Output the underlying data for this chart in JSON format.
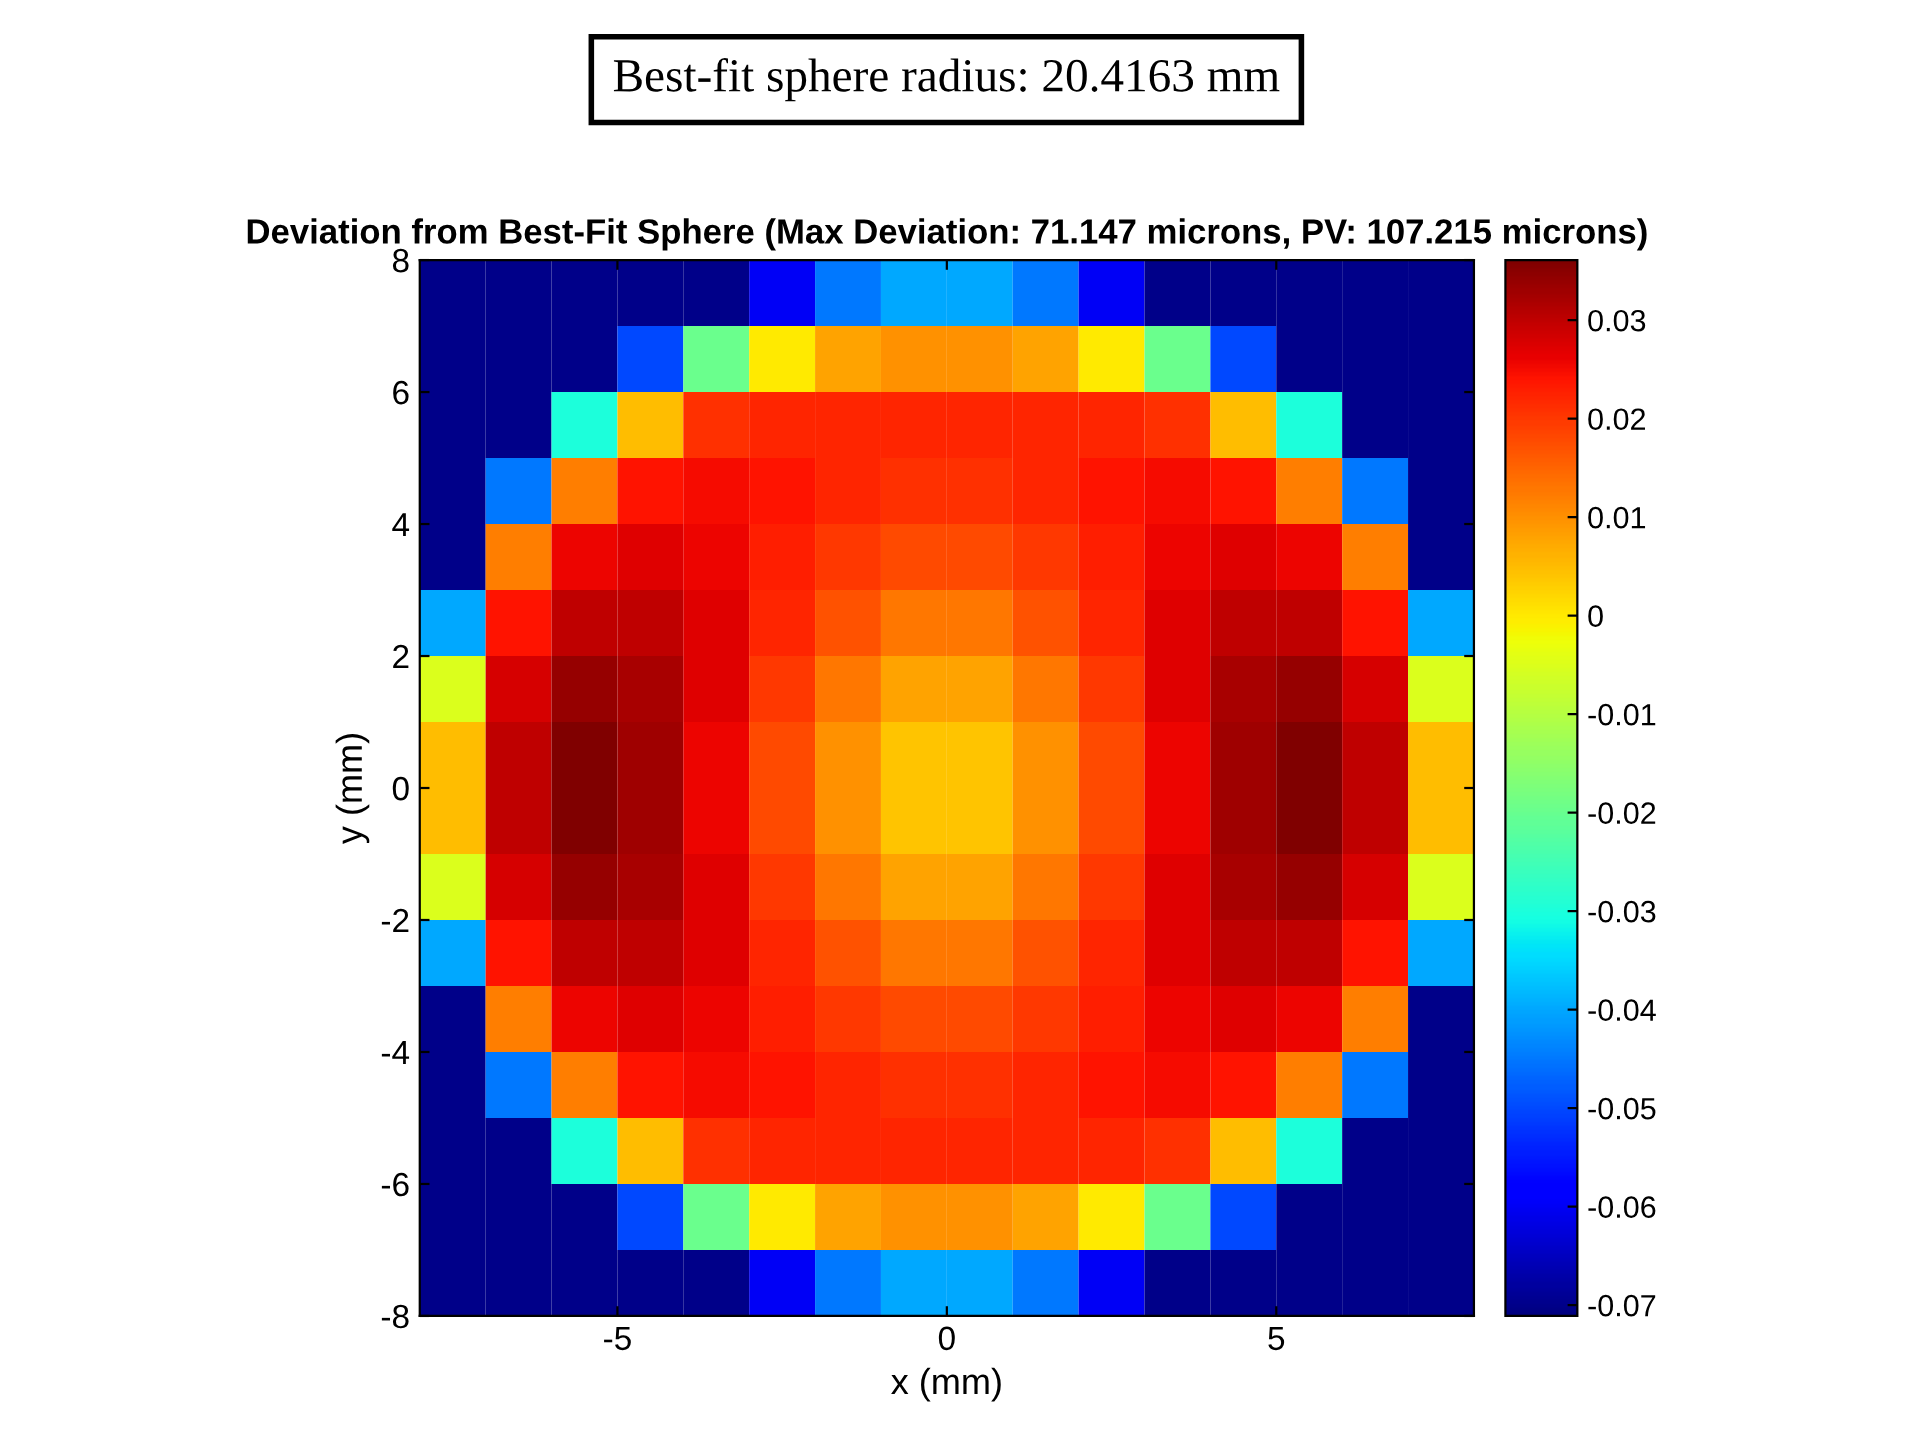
{
  "chart_data": {
    "type": "heatmap",
    "title": "Deviation from Best-Fit Sphere (Max Deviation: 71.147 microns, PV: 107.215 microns)",
    "xlabel": "x (mm)",
    "ylabel": "y (mm)",
    "annotations": [
      "Best-fit sphere radius: 20.4163 mm"
    ],
    "x": [
      -7.5,
      -6.5,
      -5.5,
      -4.5,
      -3.5,
      -2.5,
      -1.5,
      -0.5,
      0.5,
      1.5,
      2.5,
      3.5,
      4.5,
      5.5,
      6.5,
      7.5
    ],
    "cells": [
      [
        -0.07,
        -0.07,
        -0.07,
        -0.07,
        -0.07,
        -0.06,
        -0.045,
        -0.04,
        -0.04,
        -0.045,
        -0.06,
        -0.07,
        -0.07,
        -0.07,
        -0.07,
        -0.07
      ],
      [
        -0.07,
        -0.07,
        -0.07,
        -0.05,
        -0.02,
        0.0,
        0.008,
        0.01,
        0.01,
        0.008,
        0.0,
        -0.02,
        -0.05,
        -0.07,
        -0.07,
        -0.07
      ],
      [
        -0.07,
        -0.07,
        -0.03,
        0.005,
        0.021,
        0.022,
        0.022,
        0.022,
        0.022,
        0.022,
        0.022,
        0.021,
        0.005,
        -0.03,
        -0.07,
        -0.07
      ],
      [
        -0.07,
        -0.045,
        0.012,
        0.024,
        0.025,
        0.024,
        0.022,
        0.021,
        0.021,
        0.022,
        0.024,
        0.025,
        0.024,
        0.012,
        -0.045,
        -0.07
      ],
      [
        -0.07,
        0.012,
        0.026,
        0.027,
        0.026,
        0.023,
        0.02,
        0.018,
        0.018,
        0.02,
        0.023,
        0.026,
        0.027,
        0.026,
        0.012,
        -0.07
      ],
      [
        -0.04,
        0.024,
        0.03,
        0.03,
        0.027,
        0.022,
        0.017,
        0.013,
        0.013,
        0.017,
        0.022,
        0.027,
        0.03,
        0.03,
        0.024,
        -0.04
      ],
      [
        -0.005,
        0.028,
        0.034,
        0.032,
        0.027,
        0.02,
        0.013,
        0.008,
        0.008,
        0.013,
        0.02,
        0.027,
        0.032,
        0.034,
        0.028,
        -0.005
      ],
      [
        0.005,
        0.03,
        0.036,
        0.033,
        0.026,
        0.018,
        0.01,
        0.004,
        0.004,
        0.01,
        0.018,
        0.026,
        0.033,
        0.036,
        0.03,
        0.005
      ],
      [
        0.005,
        0.03,
        0.036,
        0.033,
        0.026,
        0.018,
        0.01,
        0.004,
        0.004,
        0.01,
        0.018,
        0.026,
        0.033,
        0.036,
        0.03,
        0.005
      ],
      [
        -0.005,
        0.028,
        0.034,
        0.032,
        0.027,
        0.02,
        0.013,
        0.008,
        0.008,
        0.013,
        0.02,
        0.027,
        0.032,
        0.034,
        0.028,
        -0.005
      ],
      [
        -0.04,
        0.024,
        0.03,
        0.03,
        0.027,
        0.022,
        0.017,
        0.013,
        0.013,
        0.017,
        0.022,
        0.027,
        0.03,
        0.03,
        0.024,
        -0.04
      ],
      [
        -0.07,
        0.012,
        0.026,
        0.027,
        0.026,
        0.023,
        0.02,
        0.018,
        0.018,
        0.02,
        0.023,
        0.026,
        0.027,
        0.026,
        0.012,
        -0.07
      ],
      [
        -0.07,
        -0.045,
        0.012,
        0.024,
        0.025,
        0.024,
        0.022,
        0.021,
        0.021,
        0.022,
        0.024,
        0.025,
        0.024,
        0.012,
        -0.045,
        -0.07
      ],
      [
        -0.07,
        -0.07,
        -0.03,
        0.005,
        0.021,
        0.022,
        0.022,
        0.022,
        0.022,
        0.022,
        0.022,
        0.021,
        0.005,
        -0.03,
        -0.07,
        -0.07
      ],
      [
        -0.07,
        -0.07,
        -0.07,
        -0.05,
        -0.02,
        0.0,
        0.008,
        0.01,
        0.01,
        0.008,
        0.0,
        -0.02,
        -0.05,
        -0.07,
        -0.07,
        -0.07
      ],
      [
        -0.07,
        -0.07,
        -0.07,
        -0.07,
        -0.07,
        -0.06,
        -0.045,
        -0.04,
        -0.04,
        -0.045,
        -0.06,
        -0.07,
        -0.07,
        -0.07,
        -0.07,
        -0.07
      ]
    ],
    "xlim": [
      -8,
      8
    ],
    "ylim": [
      -8,
      8
    ],
    "xticks": [
      -5,
      0,
      5
    ],
    "yticks": [
      -8,
      -6,
      -4,
      -2,
      0,
      2,
      4,
      6,
      8
    ],
    "clim": [
      -0.0711,
      0.0361
    ],
    "cticks": [
      -0.07,
      -0.06,
      -0.05,
      -0.04,
      -0.03,
      -0.02,
      -0.01,
      0,
      0.01,
      0.02,
      0.03
    ],
    "grid": false
  }
}
